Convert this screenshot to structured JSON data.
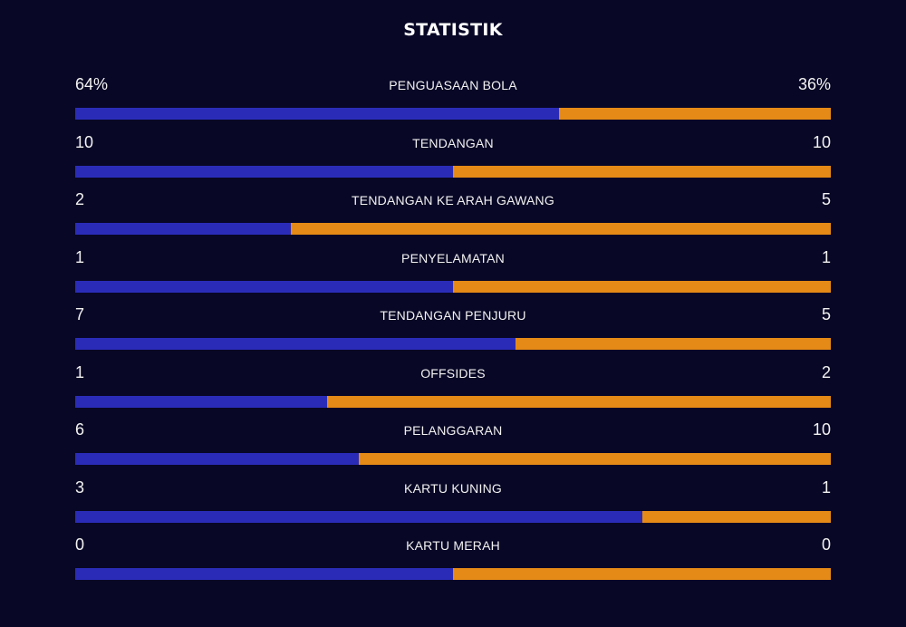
{
  "title": "STATISTIK",
  "colors": {
    "home": "#2a2cb8",
    "away": "#e58a16",
    "background": "#080726"
  },
  "stats": [
    {
      "label": "PENGUASAAN BOLA",
      "home": "64%",
      "away": "36%",
      "home_share": 0.64
    },
    {
      "label": "TENDANGAN",
      "home": "10",
      "away": "10",
      "home_share": 0.5
    },
    {
      "label": "TENDANGAN KE ARAH GAWANG",
      "home": "2",
      "away": "5",
      "home_share": 0.2857
    },
    {
      "label": "PENYELAMATAN",
      "home": "1",
      "away": "1",
      "home_share": 0.5
    },
    {
      "label": "TENDANGAN PENJURU",
      "home": "7",
      "away": "5",
      "home_share": 0.5833
    },
    {
      "label": "OFFSIDES",
      "home": "1",
      "away": "2",
      "home_share": 0.3333
    },
    {
      "label": "PELANGGARAN",
      "home": "6",
      "away": "10",
      "home_share": 0.375
    },
    {
      "label": "KARTU KUNING",
      "home": "3",
      "away": "1",
      "home_share": 0.75
    },
    {
      "label": "KARTU MERAH",
      "home": "0",
      "away": "0",
      "home_share": 0.5
    }
  ]
}
